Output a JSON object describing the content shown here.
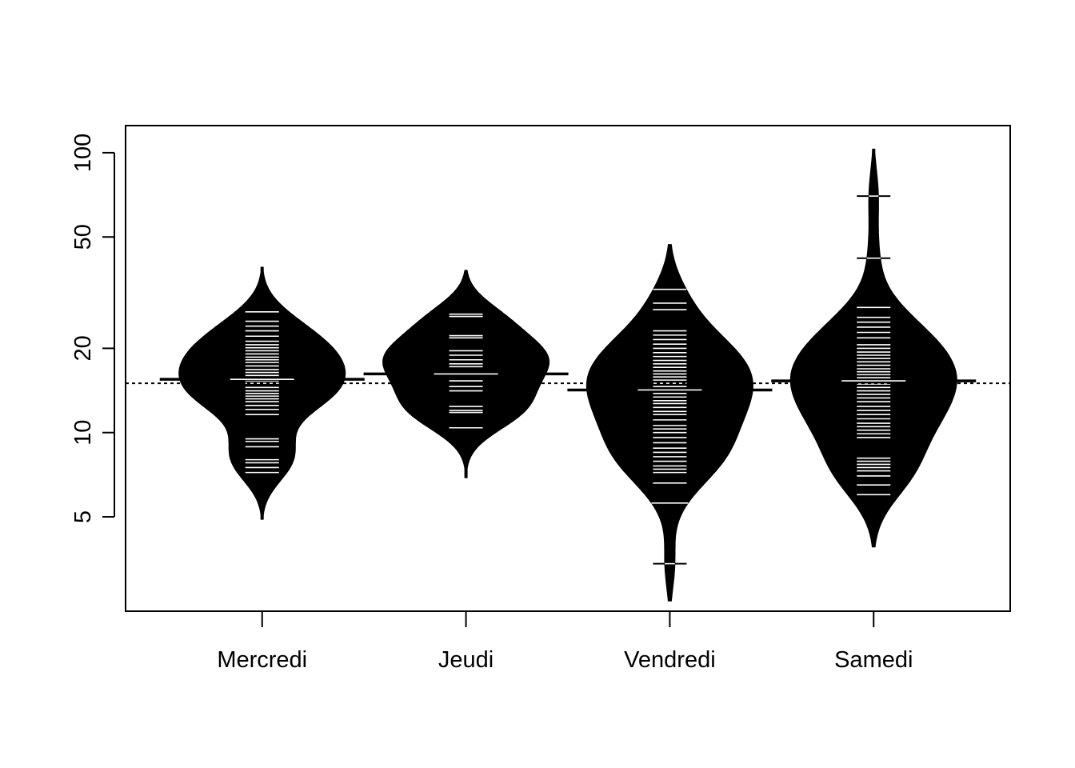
{
  "chart_data": {
    "type": "beanplot",
    "title": "",
    "xlabel": "",
    "ylabel": "",
    "y_scale": "log",
    "ylim": [
      2.3,
      125
    ],
    "y_ticks": [
      5,
      10,
      20,
      50,
      100
    ],
    "y_tick_labels": [
      "5",
      "10",
      "20",
      "50",
      "100"
    ],
    "overall_mean": 15,
    "overall_mean_line": "dotted",
    "grid": false,
    "legend": "none",
    "categories": [
      "Mercredi",
      "Jeudi",
      "Vendredi",
      "Samedi"
    ],
    "series": [
      {
        "category": "Mercredi",
        "mean": 15.5,
        "min": 4.9,
        "max": 39,
        "observations": [
          7.2,
          7.5,
          7.8,
          8.0,
          8.9,
          9.3,
          9.5,
          11.6,
          12.1,
          12.5,
          12.9,
          13.2,
          13.5,
          13.8,
          14.1,
          14.5,
          15.0,
          15.3,
          15.5,
          16.0,
          16.4,
          16.8,
          17.3,
          17.8,
          18.2,
          18.6,
          19.1,
          19.6,
          20.1,
          20.6,
          21.2,
          22.1,
          23.1,
          24.0,
          25.0,
          27.0
        ]
      },
      {
        "category": "Jeudi",
        "mean": 16.2,
        "min": 6.9,
        "max": 38,
        "observations": [
          10.4,
          11.8,
          12.0,
          12.4,
          14.1,
          14.6,
          15.3,
          17.2,
          17.6,
          18.2,
          18.9,
          19.6,
          21.8,
          22.2,
          26.0,
          26.5
        ]
      },
      {
        "category": "Vendredi",
        "mean": 14.2,
        "min": 2.5,
        "max": 47,
        "observations": [
          3.4,
          5.6,
          6.6,
          7.2,
          7.4,
          7.6,
          7.9,
          8.2,
          8.5,
          8.8,
          9.2,
          9.6,
          10.0,
          10.3,
          10.6,
          11.1,
          11.6,
          11.9,
          12.3,
          12.7,
          13.0,
          13.4,
          13.8,
          14.2,
          14.6,
          15.0,
          15.4,
          15.8,
          16.2,
          16.6,
          17.1,
          17.6,
          18.1,
          18.7,
          19.3,
          20.0,
          20.7,
          21.5,
          22.3,
          23.1,
          27.5,
          29.0,
          32.5
        ]
      },
      {
        "category": "Samedi",
        "mean": 15.3,
        "min": 3.9,
        "max": 103,
        "observations": [
          6.0,
          6.5,
          7.0,
          7.3,
          7.5,
          7.7,
          7.9,
          8.1,
          9.6,
          9.9,
          10.2,
          10.5,
          10.8,
          11.2,
          11.6,
          12.0,
          12.4,
          12.9,
          13.3,
          13.7,
          14.1,
          14.5,
          14.9,
          15.3,
          15.7,
          16.1,
          16.5,
          16.9,
          17.4,
          17.9,
          18.4,
          18.9,
          19.4,
          20.0,
          20.6,
          21.8,
          22.8,
          23.8,
          24.8,
          25.8,
          28.0,
          42.0,
          70.0
        ]
      }
    ]
  }
}
